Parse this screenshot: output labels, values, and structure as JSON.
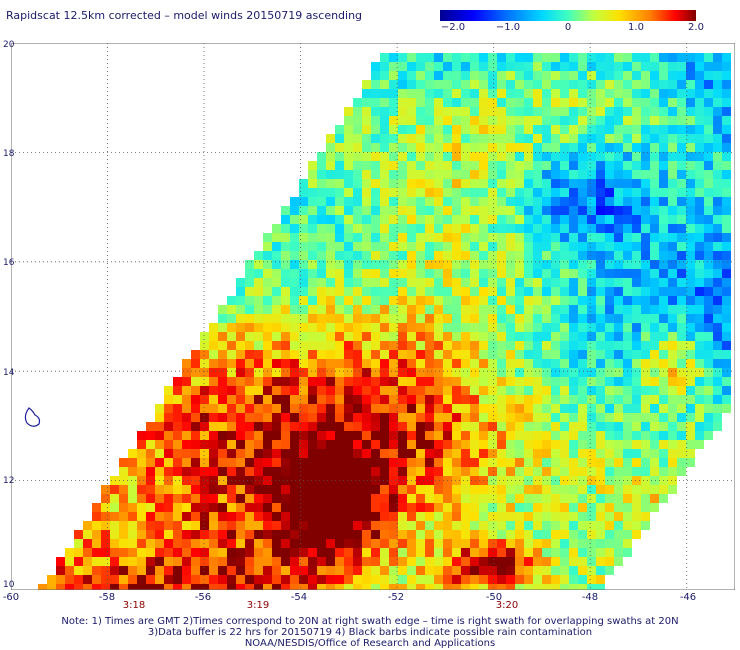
{
  "title": "Rapidscat 12.5km corrected – model winds 20150719 ascending",
  "colorbar": {
    "labels": [
      "−2.0",
      "−1.0",
      "0",
      "1.0",
      "2.0"
    ],
    "range": [
      -2.0,
      2.0
    ]
  },
  "map": {
    "lon_range": [
      -60,
      -45
    ],
    "lat_range": [
      10,
      20
    ],
    "lat_labels": [
      "20",
      "18",
      "16",
      "14",
      "12",
      "10"
    ],
    "lon_labels": [
      "-60",
      "-58",
      "-56",
      "-54",
      "-52",
      "-50",
      "-48",
      "-46"
    ],
    "time_labels": [
      "3:18",
      "3:19",
      "3:20"
    ],
    "grid": "dotted"
  },
  "notes": [
    "Note: 1) Times are GMT 2)Times correspond to 20N at right swath edge – time is right swath for overlapping swaths at 20N",
    "3)Data buffer is 22 hrs for 20150719 4) Black barbs indicate possible rain contamination",
    "NOAA/NESDIS/Office of Research and Applications"
  ],
  "colors": {
    "text": "#1b1b6b",
    "time_text": "#8b0000",
    "grid": "#555555",
    "land": "#2020a0"
  }
}
